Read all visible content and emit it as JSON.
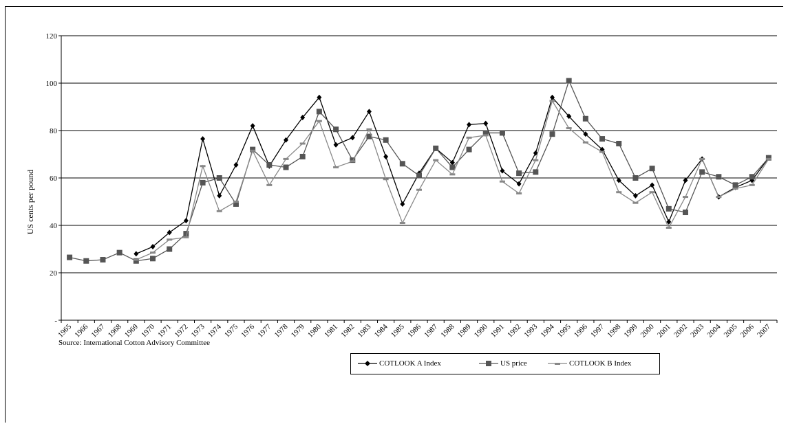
{
  "chart_data": {
    "type": "line",
    "ylabel": "US cents per pound",
    "ylim": [
      0,
      120
    ],
    "yticks": [
      {
        "value": 0,
        "label": "-"
      },
      {
        "value": 20,
        "label": "20"
      },
      {
        "value": 40,
        "label": "40"
      },
      {
        "value": 60,
        "label": "60"
      },
      {
        "value": 80,
        "label": "80"
      },
      {
        "value": 100,
        "label": "100"
      },
      {
        "value": 120,
        "label": "120"
      }
    ],
    "grid": "horizontal",
    "legend_position": "bottom",
    "categories": [
      "1965",
      "1966",
      "1967",
      "1968",
      "1969",
      "1970",
      "1971",
      "1972",
      "1973",
      "1974",
      "1975",
      "1976",
      "1977",
      "1978",
      "1979",
      "1980",
      "1981",
      "1982",
      "1983",
      "1984",
      "1985",
      "1986",
      "1987",
      "1988",
      "1989",
      "1990",
      "1991",
      "1992",
      "1993",
      "1994",
      "1995",
      "1996",
      "1997",
      "1998",
      "1999",
      "2000",
      "2001",
      "2002",
      "2003",
      "2004",
      "2005",
      "2006",
      "2007"
    ],
    "series": [
      {
        "name": "COTLOOK A Index",
        "marker": "diamond",
        "color": "#000000",
        "values": [
          null,
          null,
          null,
          null,
          28,
          31,
          37,
          42,
          76.5,
          52.5,
          65.5,
          82,
          65,
          76,
          85.5,
          94,
          74,
          77,
          88,
          69,
          49,
          62,
          72.5,
          66.5,
          82.5,
          83,
          63,
          57.5,
          70.5,
          94,
          86,
          78.5,
          72,
          59,
          52.5,
          57,
          41.5,
          59,
          68,
          52,
          56,
          59,
          68.5
        ]
      },
      {
        "name": "US price",
        "marker": "square",
        "color": "#555555",
        "values": [
          26.5,
          25,
          25.5,
          28.5,
          25,
          26,
          30,
          36.5,
          58,
          60,
          49,
          72,
          65.5,
          64.5,
          69,
          88,
          80.5,
          67.5,
          77.5,
          76,
          66,
          61,
          72.5,
          64.5,
          72,
          79,
          79,
          62,
          62.5,
          78.5,
          101,
          85,
          76.5,
          74.5,
          60,
          64,
          47,
          45.5,
          62.5,
          60.5,
          57,
          60.5,
          68.5
        ]
      },
      {
        "name": "COTLOOK B Index",
        "marker": "dash",
        "color": "#888888",
        "values": [
          null,
          null,
          null,
          null,
          25.5,
          28.5,
          34,
          35,
          65,
          46,
          50,
          71.5,
          57,
          68,
          74.5,
          84,
          64.5,
          67,
          80.5,
          59.5,
          41,
          55,
          67.5,
          61.5,
          77,
          78,
          58.5,
          53.5,
          67.5,
          92.5,
          81,
          75,
          71,
          54,
          49.5,
          54,
          39,
          52,
          68,
          52,
          55.5,
          57,
          68
        ]
      }
    ]
  },
  "source_text": "Source: International Cotton Advisory Committee",
  "legend": [
    {
      "label": "COTLOOK A Index"
    },
    {
      "label": "US price"
    },
    {
      "label": "COTLOOK B Index"
    }
  ]
}
